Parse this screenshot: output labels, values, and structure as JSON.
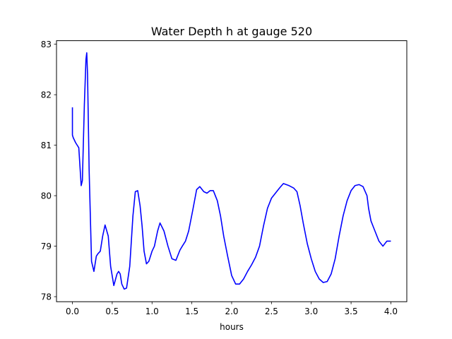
{
  "chart_data": {
    "type": "line",
    "title": "Water Depth h at gauge 520",
    "xlabel": "hours",
    "ylabel": "",
    "xlim": [
      -0.2,
      4.2
    ],
    "ylim": [
      77.9,
      83.07
    ],
    "xticks": [
      0.0,
      0.5,
      1.0,
      1.5,
      2.0,
      2.5,
      3.0,
      3.5,
      4.0
    ],
    "xtick_labels": [
      "0.0",
      "0.5",
      "1.0",
      "1.5",
      "2.0",
      "2.5",
      "3.0",
      "3.5",
      "4.0"
    ],
    "yticks": [
      78,
      79,
      80,
      81,
      82,
      83
    ],
    "ytick_labels": [
      "78",
      "79",
      "80",
      "81",
      "82",
      "83"
    ],
    "grid": false,
    "series": [
      {
        "color": "#0000ff",
        "x": [
          0.0,
          0.0,
          0.01,
          0.04,
          0.08,
          0.11,
          0.125,
          0.15,
          0.17,
          0.18,
          0.19,
          0.21,
          0.24,
          0.27,
          0.3,
          0.32,
          0.35,
          0.38,
          0.41,
          0.45,
          0.48,
          0.52,
          0.56,
          0.58,
          0.6,
          0.62,
          0.65,
          0.68,
          0.72,
          0.76,
          0.79,
          0.82,
          0.85,
          0.875,
          0.9,
          0.93,
          0.96,
          1.0,
          1.03,
          1.07,
          1.1,
          1.15,
          1.2,
          1.25,
          1.3,
          1.35,
          1.38,
          1.42,
          1.46,
          1.51,
          1.56,
          1.6,
          1.65,
          1.69,
          1.73,
          1.77,
          1.82,
          1.86,
          1.9,
          1.95,
          2.0,
          2.05,
          2.1,
          2.15,
          2.2,
          2.25,
          2.3,
          2.35,
          2.4,
          2.45,
          2.5,
          2.55,
          2.6,
          2.65,
          2.72,
          2.78,
          2.82,
          2.86,
          2.9,
          2.95,
          3.0,
          3.05,
          3.1,
          3.15,
          3.2,
          3.25,
          3.3,
          3.35,
          3.4,
          3.45,
          3.5,
          3.55,
          3.6,
          3.65,
          3.7,
          3.72,
          3.75,
          3.8,
          3.85,
          3.9,
          3.95,
          4.0
        ],
        "y": [
          81.75,
          81.2,
          81.15,
          81.05,
          80.95,
          80.2,
          80.3,
          81.8,
          82.7,
          82.83,
          82.4,
          80.5,
          78.7,
          78.5,
          78.8,
          78.85,
          78.9,
          79.2,
          79.42,
          79.2,
          78.6,
          78.22,
          78.45,
          78.5,
          78.45,
          78.25,
          78.15,
          78.17,
          78.6,
          79.6,
          80.08,
          80.1,
          79.8,
          79.4,
          78.9,
          78.65,
          78.7,
          78.9,
          79.0,
          79.3,
          79.46,
          79.3,
          79.0,
          78.75,
          78.72,
          78.92,
          79.0,
          79.1,
          79.3,
          79.7,
          80.12,
          80.18,
          80.08,
          80.05,
          80.1,
          80.1,
          79.9,
          79.6,
          79.2,
          78.8,
          78.42,
          78.25,
          78.25,
          78.35,
          78.5,
          78.63,
          78.78,
          79.0,
          79.4,
          79.75,
          79.95,
          80.05,
          80.15,
          80.24,
          80.2,
          80.15,
          80.08,
          79.8,
          79.45,
          79.05,
          78.75,
          78.5,
          78.35,
          78.28,
          78.3,
          78.45,
          78.75,
          79.2,
          79.6,
          79.9,
          80.1,
          80.2,
          80.22,
          80.18,
          80.0,
          79.75,
          79.5,
          79.3,
          79.1,
          79.0,
          79.1,
          79.1
        ]
      }
    ]
  }
}
